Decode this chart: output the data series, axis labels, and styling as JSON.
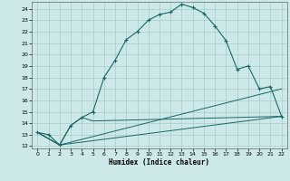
{
  "xlabel": "Humidex (Indice chaleur)",
  "bg_color": "#cce8e8",
  "grid_color": "#aacccc",
  "line_color": "#1a6666",
  "xlim": [
    -0.5,
    22.5
  ],
  "ylim": [
    11.8,
    24.6
  ],
  "xticks": [
    0,
    1,
    2,
    3,
    4,
    5,
    6,
    7,
    8,
    9,
    10,
    11,
    12,
    13,
    14,
    15,
    16,
    17,
    18,
    19,
    20,
    21,
    22
  ],
  "yticks": [
    12,
    13,
    14,
    15,
    16,
    17,
    18,
    19,
    20,
    21,
    22,
    23,
    24
  ],
  "line1_x": [
    0,
    1,
    2,
    3,
    4,
    5,
    6,
    7,
    8,
    9,
    10,
    11,
    12,
    13,
    14,
    15,
    16,
    17,
    18,
    19,
    20,
    21,
    22
  ],
  "line1_y": [
    13.2,
    13.0,
    12.1,
    13.8,
    14.5,
    15.0,
    18.0,
    19.5,
    21.3,
    22.0,
    23.0,
    23.5,
    23.7,
    24.4,
    24.1,
    23.6,
    22.5,
    21.2,
    18.7,
    19.0,
    17.0,
    17.2,
    14.6
  ],
  "line2_x": [
    0,
    2,
    3,
    4,
    5,
    22
  ],
  "line2_y": [
    13.2,
    12.1,
    13.8,
    14.5,
    14.2,
    14.6
  ],
  "line3_x": [
    0,
    2,
    22
  ],
  "line3_y": [
    13.2,
    12.1,
    17.0
  ],
  "line4_x": [
    0,
    2,
    22
  ],
  "line4_y": [
    13.2,
    12.1,
    14.6
  ]
}
